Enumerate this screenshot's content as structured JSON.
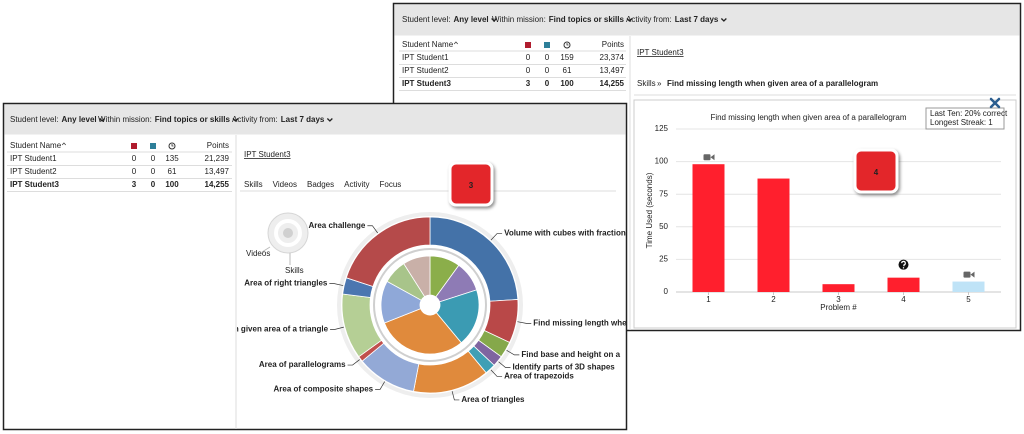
{
  "back_panel": {
    "filters": [
      {
        "label": "Student level:",
        "value": "Any level"
      },
      {
        "label": "Within mission:",
        "value": "Find topics or skills"
      },
      {
        "label": "Activity from:",
        "value": "Last 7 days"
      }
    ],
    "table": {
      "columns": [
        "Student Name",
        "Points"
      ],
      "rows": [
        [
          "IPT Student1",
          0,
          0,
          159,
          "23,374"
        ],
        [
          "IPT Student2",
          0,
          0,
          61,
          "13,497"
        ],
        [
          "IPT Student3",
          3,
          0,
          100,
          "14,255"
        ]
      ]
    },
    "student": "IPT Student3",
    "breadcrumb": {
      "root": "Skills",
      "separator": "»",
      "skill": "Find missing length when given area of a parallelogram"
    },
    "badge": "4"
  },
  "front_panel": {
    "filters": [
      {
        "label": "Student level:",
        "value": "Any level"
      },
      {
        "label": "Within mission:",
        "value": "Find topics or skills"
      },
      {
        "label": "Activity from:",
        "value": "Last 7 days"
      }
    ],
    "table": {
      "columns": [
        "Student Name",
        "Points"
      ],
      "rows": [
        [
          "IPT Student1",
          0,
          0,
          135,
          "21,239"
        ],
        [
          "IPT Student2",
          0,
          0,
          61,
          "13,497"
        ],
        [
          "IPT Student3",
          3,
          0,
          100,
          "14,255"
        ]
      ]
    },
    "student": "IPT Student3",
    "tabs": [
      "Skills",
      "Videos",
      "Badges",
      "Activity",
      "Focus"
    ],
    "legend": [
      "Videos",
      "Skills"
    ],
    "badge": "3"
  },
  "chart_data": [
    {
      "type": "bar",
      "title": "Find missing length when given area of a parallelogram",
      "categories": [
        "1",
        "2",
        "3",
        "4",
        "5"
      ],
      "values": [
        98,
        87,
        6,
        11,
        8
      ],
      "colors": [
        "#ff1f2d",
        "#ff1f2d",
        "#ff1f2d",
        "#ff1f2d",
        "#bfe3f7"
      ],
      "ylim": [
        0,
        125
      ],
      "yticks": [
        0,
        25,
        50,
        75,
        100,
        125
      ],
      "grid": true,
      "ylabel": "Time Used (seconds)",
      "xlabel": "Problem #",
      "tooltip": [
        "Last Ten: 20% correct",
        "Longest Streak: 1"
      ]
    },
    {
      "type": "donut",
      "rings": [
        {
          "categories": [
            "Volume with cubes with fraction leng",
            "Find missing length whe",
            "Find base and height on a",
            "Identify parts of 3D shapes",
            "Area of trapezoids",
            "Area of triangles",
            "Area of composite shapes",
            "Area of parallelograms",
            "when given area of a triangle",
            "Area of right triangles",
            "Area challenge"
          ],
          "values": [
            24,
            8,
            3,
            2,
            2,
            14,
            11,
            1,
            12,
            3,
            20
          ],
          "colors": [
            "#4472a8",
            "#b94848",
            "#85a84a",
            "#7f65a0",
            "#3f9fb5",
            "#e08a3c",
            "#93a9d6",
            "#c0504d",
            "#b5cf95",
            "#4b76b0",
            "#b54a4a"
          ]
        },
        {
          "values": [
            10,
            10,
            19,
            30,
            14,
            8,
            9
          ],
          "colors": [
            "#8bae4a",
            "#8e7bb5",
            "#3b9bb3",
            "#e08a3c",
            "#8fa8d8",
            "#a8c48a",
            "#c9b0a8"
          ]
        }
      ]
    }
  ]
}
